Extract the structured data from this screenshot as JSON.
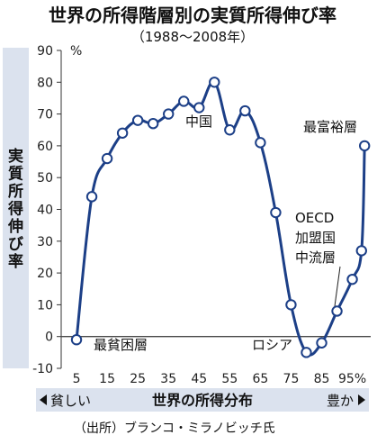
{
  "chart_data": {
    "type": "line",
    "title": "世界の所得階層別の実質所得伸び率",
    "subtitle": "（1988〜2008年）",
    "ylabel": "実質所得伸び率",
    "xlabel": "世界の所得分布",
    "x_left_label": "貧しい",
    "x_right_label": "豊か",
    "y_unit": "%",
    "ylim": [
      -10,
      90
    ],
    "yticks": [
      -10,
      0,
      10,
      20,
      30,
      40,
      50,
      60,
      70,
      80,
      90
    ],
    "xticks": [
      "5",
      "15",
      "25",
      "35",
      "45",
      "55",
      "65",
      "75",
      "85",
      "95"
    ],
    "x_last_tick_suffix": "%",
    "xlim": [
      0,
      101
    ],
    "series": [
      {
        "x": [
          5,
          10,
          15,
          20,
          25,
          30,
          35,
          40,
          45,
          50,
          55,
          60,
          65,
          70,
          75,
          80,
          85,
          90,
          95,
          98,
          99
        ],
        "values": [
          -1,
          44,
          56,
          64,
          68,
          67,
          70,
          74,
          72,
          80,
          65,
          71,
          61,
          39,
          10,
          -5,
          -2,
          8,
          18,
          27,
          60
        ]
      }
    ],
    "annotations": [
      "中国",
      "最貧困層",
      "ロシア",
      "OECD",
      "加盟国",
      "中流層",
      "最富裕層"
    ],
    "colors": {
      "line": "#1c3f87",
      "marker_fill": "#ffffff",
      "band": "#dbe2ee",
      "zero_line": "#4a4a4a"
    },
    "grid": false
  },
  "source": "（出所）ブランコ・ミラノビッチ氏"
}
